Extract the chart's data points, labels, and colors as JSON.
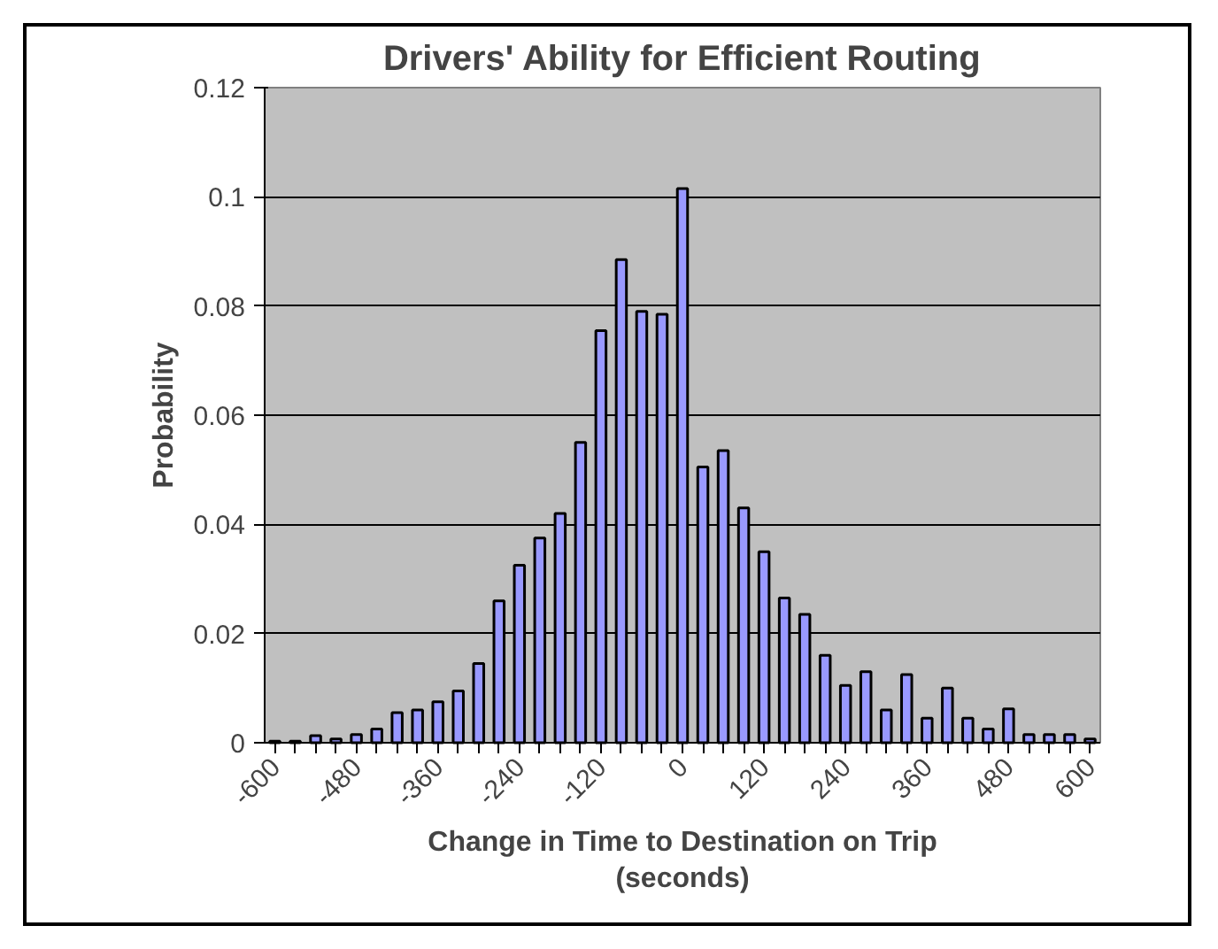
{
  "chart_data": {
    "type": "bar",
    "title": "Drivers' Ability for Efficient Routing",
    "xlabel": "Change in Time to Destination on Trip (seconds)",
    "ylabel": "Probability",
    "categories": [
      "-600",
      null,
      null,
      null,
      "-480",
      null,
      null,
      null,
      "-360",
      null,
      null,
      null,
      "-240",
      null,
      null,
      null,
      "-120",
      null,
      null,
      null,
      "0",
      null,
      null,
      null,
      "120",
      null,
      null,
      null,
      "240",
      null,
      null,
      null,
      "360",
      null,
      null,
      null,
      "480",
      null,
      null,
      null,
      "600"
    ],
    "values": [
      0.0003,
      0.0003,
      0.0013,
      0.0007,
      0.0015,
      0.0025,
      0.0055,
      0.006,
      0.0075,
      0.0095,
      0.0145,
      0.026,
      0.0325,
      0.0375,
      0.042,
      0.055,
      0.0755,
      0.0885,
      0.079,
      0.0785,
      0.1015,
      0.0505,
      0.0535,
      0.043,
      0.035,
      0.0265,
      0.0235,
      0.016,
      0.0105,
      0.013,
      0.006,
      0.0125,
      0.0045,
      0.01,
      0.0045,
      0.0025,
      0.0062,
      0.0015,
      0.0015,
      0.0015,
      0.0007
    ],
    "color": "#9999ff",
    "ylim": [
      0,
      0.12
    ],
    "yticks": [
      0,
      0.02,
      0.04,
      0.06,
      0.08,
      0.1,
      0.12
    ],
    "grid": "y"
  }
}
